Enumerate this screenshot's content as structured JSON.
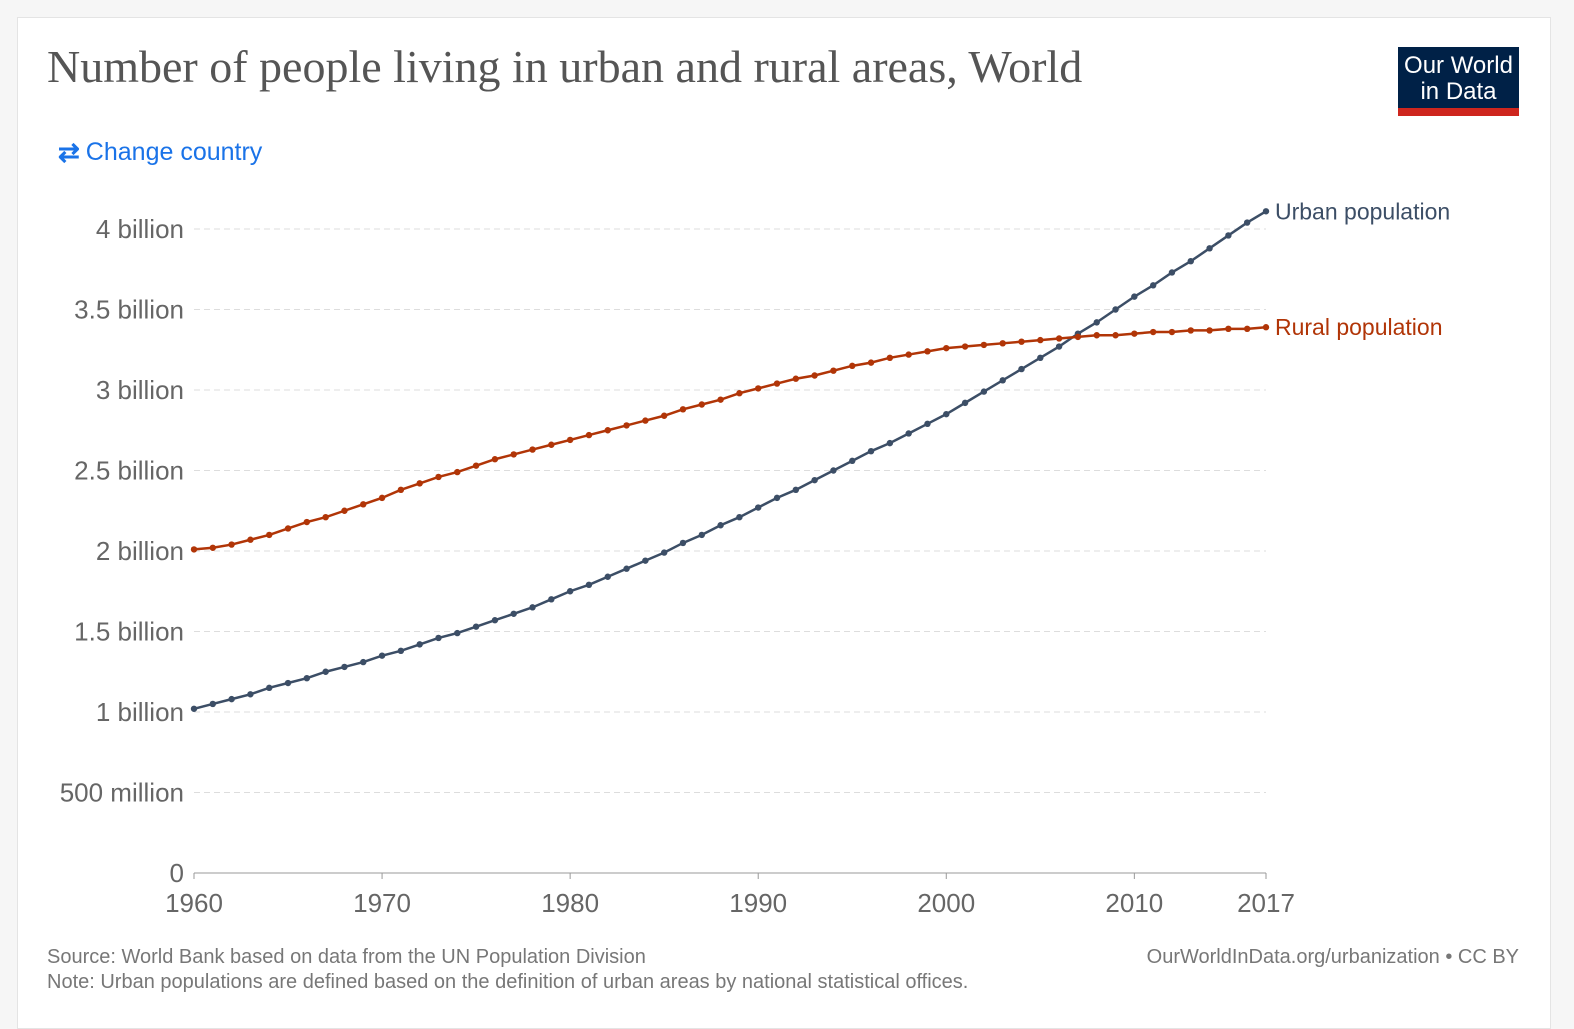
{
  "header": {
    "title": "Number of people living in urban and rural areas, World",
    "logo_line1": "Our World",
    "logo_line2": "in Data",
    "change_country": "Change country"
  },
  "footer": {
    "source": "Source: World Bank based on data from the UN Population Division",
    "note": "Note: Urban populations are defined based on the definition of urban areas by national statistical offices.",
    "url": "OurWorldInData.org/urbanization • CC BY"
  },
  "chart_data": {
    "type": "line",
    "title": "Number of people living in urban and rural areas, World",
    "xlim": [
      1960,
      2017
    ],
    "ylim": [
      0,
      4000000000
    ],
    "grid": true,
    "legend_placement": "right (inline labels at line ends)",
    "x_ticks": [
      {
        "v": 1960,
        "label": "1960"
      },
      {
        "v": 1970,
        "label": "1970"
      },
      {
        "v": 1980,
        "label": "1980"
      },
      {
        "v": 1990,
        "label": "1990"
      },
      {
        "v": 2000,
        "label": "2000"
      },
      {
        "v": 2010,
        "label": "2010"
      },
      {
        "v": 2017,
        "label": "2017"
      }
    ],
    "y_ticks": [
      {
        "v": 0,
        "label": "0"
      },
      {
        "v": 0.5,
        "label": "500 million"
      },
      {
        "v": 1,
        "label": "1 billion"
      },
      {
        "v": 1.5,
        "label": "1.5 billion"
      },
      {
        "v": 2,
        "label": "2 billion"
      },
      {
        "v": 2.5,
        "label": "2.5 billion"
      },
      {
        "v": 3,
        "label": "3 billion"
      },
      {
        "v": 3.5,
        "label": "3.5 billion"
      },
      {
        "v": 4,
        "label": "4 billion"
      }
    ],
    "y_unit": "billion",
    "x": [
      1960,
      1961,
      1962,
      1963,
      1964,
      1965,
      1966,
      1967,
      1968,
      1969,
      1970,
      1971,
      1972,
      1973,
      1974,
      1975,
      1976,
      1977,
      1978,
      1979,
      1980,
      1981,
      1982,
      1983,
      1984,
      1985,
      1986,
      1987,
      1988,
      1989,
      1990,
      1991,
      1992,
      1993,
      1994,
      1995,
      1996,
      1997,
      1998,
      1999,
      2000,
      2001,
      2002,
      2003,
      2004,
      2005,
      2006,
      2007,
      2008,
      2009,
      2010,
      2011,
      2012,
      2013,
      2014,
      2015,
      2016,
      2017
    ],
    "series": [
      {
        "name": "Urban population",
        "color": "#3c4e66",
        "values": [
          1.02,
          1.05,
          1.08,
          1.11,
          1.15,
          1.18,
          1.21,
          1.25,
          1.28,
          1.31,
          1.35,
          1.38,
          1.42,
          1.46,
          1.49,
          1.53,
          1.57,
          1.61,
          1.65,
          1.7,
          1.75,
          1.79,
          1.84,
          1.89,
          1.94,
          1.99,
          2.05,
          2.1,
          2.16,
          2.21,
          2.27,
          2.33,
          2.38,
          2.44,
          2.5,
          2.56,
          2.62,
          2.67,
          2.73,
          2.79,
          2.85,
          2.92,
          2.99,
          3.06,
          3.13,
          3.2,
          3.27,
          3.35,
          3.42,
          3.5,
          3.58,
          3.65,
          3.73,
          3.8,
          3.88,
          3.96,
          4.04,
          4.11
        ]
      },
      {
        "name": "Rural population",
        "color": "#b13507",
        "values": [
          2.01,
          2.02,
          2.04,
          2.07,
          2.1,
          2.14,
          2.18,
          2.21,
          2.25,
          2.29,
          2.33,
          2.38,
          2.42,
          2.46,
          2.49,
          2.53,
          2.57,
          2.6,
          2.63,
          2.66,
          2.69,
          2.72,
          2.75,
          2.78,
          2.81,
          2.84,
          2.88,
          2.91,
          2.94,
          2.98,
          3.01,
          3.04,
          3.07,
          3.09,
          3.12,
          3.15,
          3.17,
          3.2,
          3.22,
          3.24,
          3.26,
          3.27,
          3.28,
          3.29,
          3.3,
          3.31,
          3.32,
          3.33,
          3.34,
          3.34,
          3.35,
          3.36,
          3.36,
          3.37,
          3.37,
          3.38,
          3.38,
          3.39
        ]
      }
    ]
  }
}
